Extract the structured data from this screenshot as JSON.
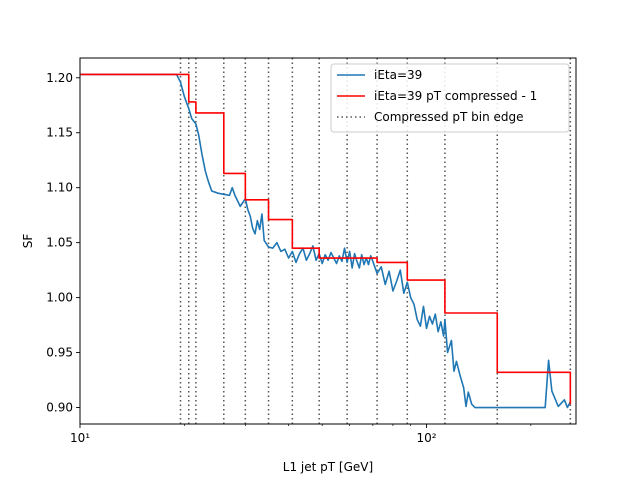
{
  "chart_data": {
    "type": "line",
    "xlabel": "L1 jet pT [GeV]",
    "ylabel": "SF",
    "xscale": "log",
    "xlim": [
      10,
      270
    ],
    "ylim": [
      0.885,
      1.218
    ],
    "grid": false,
    "legend_position": "top-right",
    "x_major_ticks": [
      10,
      100
    ],
    "x_major_tick_labels": [
      "10¹",
      "10²"
    ],
    "y_ticks": [
      0.9,
      0.95,
      1.0,
      1.05,
      1.1,
      1.15,
      1.2
    ],
    "y_tick_labels": [
      "0.90",
      "0.95",
      "1.00",
      "1.05",
      "1.10",
      "1.15",
      "1.20"
    ],
    "legend": [
      {
        "label": "iEta=39",
        "color": "#1f77b4",
        "style": "solid"
      },
      {
        "label": "iEta=39 pT compressed - 1",
        "color": "#ff0000",
        "style": "solid"
      },
      {
        "label": "Compressed pT bin edge",
        "color": "#555555",
        "style": "dotted"
      }
    ],
    "bin_edges": [
      19.5,
      20.6,
      21.6,
      26,
      30,
      35,
      41,
      49,
      59,
      72,
      88,
      113,
      160,
      260
    ],
    "series": [
      {
        "name": "iEta=39",
        "color": "#1f77b4",
        "x": [
          10,
          19,
          19.5,
          20,
          20.6,
          21,
          21.6,
          22,
          22.5,
          23,
          23.5,
          24,
          25,
          26,
          27,
          27.5,
          28,
          29,
          30,
          30.5,
          31,
          31.5,
          32,
          32.5,
          33,
          33.5,
          34,
          35,
          36,
          37,
          38,
          39,
          40,
          41,
          42,
          43,
          44,
          45,
          46,
          47,
          48,
          49,
          50,
          51,
          52,
          53,
          54,
          55,
          56,
          57,
          58,
          59,
          60,
          61,
          62,
          63,
          64,
          65,
          66,
          67,
          68,
          69,
          70,
          72,
          74,
          76,
          78,
          80,
          82,
          84,
          86,
          88,
          90,
          92,
          94,
          96,
          98,
          100,
          102,
          104,
          106,
          108,
          110,
          112,
          113,
          115,
          118,
          120,
          122,
          125,
          128,
          130,
          132,
          135,
          138,
          140,
          145,
          150,
          155,
          160,
          170,
          180,
          190,
          200,
          210,
          220,
          225,
          230,
          240,
          250,
          255,
          260
        ],
        "values": [
          1.203,
          1.203,
          1.196,
          1.183,
          1.172,
          1.163,
          1.158,
          1.148,
          1.13,
          1.115,
          1.105,
          1.097,
          1.095,
          1.094,
          1.093,
          1.1,
          1.093,
          1.083,
          1.09,
          1.08,
          1.074,
          1.063,
          1.058,
          1.07,
          1.062,
          1.076,
          1.052,
          1.046,
          1.045,
          1.05,
          1.042,
          1.044,
          1.036,
          1.042,
          1.032,
          1.04,
          1.045,
          1.034,
          1.04,
          1.047,
          1.034,
          1.04,
          1.031,
          1.039,
          1.034,
          1.041,
          1.036,
          1.031,
          1.038,
          1.033,
          1.045,
          1.032,
          1.042,
          1.027,
          1.04,
          1.033,
          1.027,
          1.039,
          1.03,
          1.036,
          1.03,
          1.038,
          1.033,
          1.022,
          1.028,
          1.012,
          1.024,
          1.006,
          1.015,
          1.025,
          1.004,
          1.014,
          1.0,
          0.994,
          0.98,
          0.974,
          0.992,
          0.972,
          0.983,
          0.976,
          0.985,
          0.969,
          0.978,
          0.965,
          0.98,
          0.95,
          0.961,
          0.933,
          0.942,
          0.929,
          0.918,
          0.901,
          0.914,
          0.903,
          0.9,
          0.9,
          0.9,
          0.9,
          0.9,
          0.9,
          0.9,
          0.9,
          0.9,
          0.9,
          0.9,
          0.9,
          0.943,
          0.915,
          0.901,
          0.907,
          0.9,
          0.905
        ]
      },
      {
        "name": "iEta=39 pT compressed - 1",
        "color": "#ff0000",
        "style": "step",
        "x": [
          10,
          19.5,
          20.6,
          21.6,
          26,
          30,
          35,
          41,
          49,
          59,
          72,
          88,
          113,
          160,
          260
        ],
        "values": [
          1.203,
          1.203,
          1.178,
          1.168,
          1.113,
          1.089,
          1.071,
          1.045,
          1.036,
          1.036,
          1.032,
          1.016,
          0.986,
          0.932,
          0.903
        ]
      }
    ]
  }
}
